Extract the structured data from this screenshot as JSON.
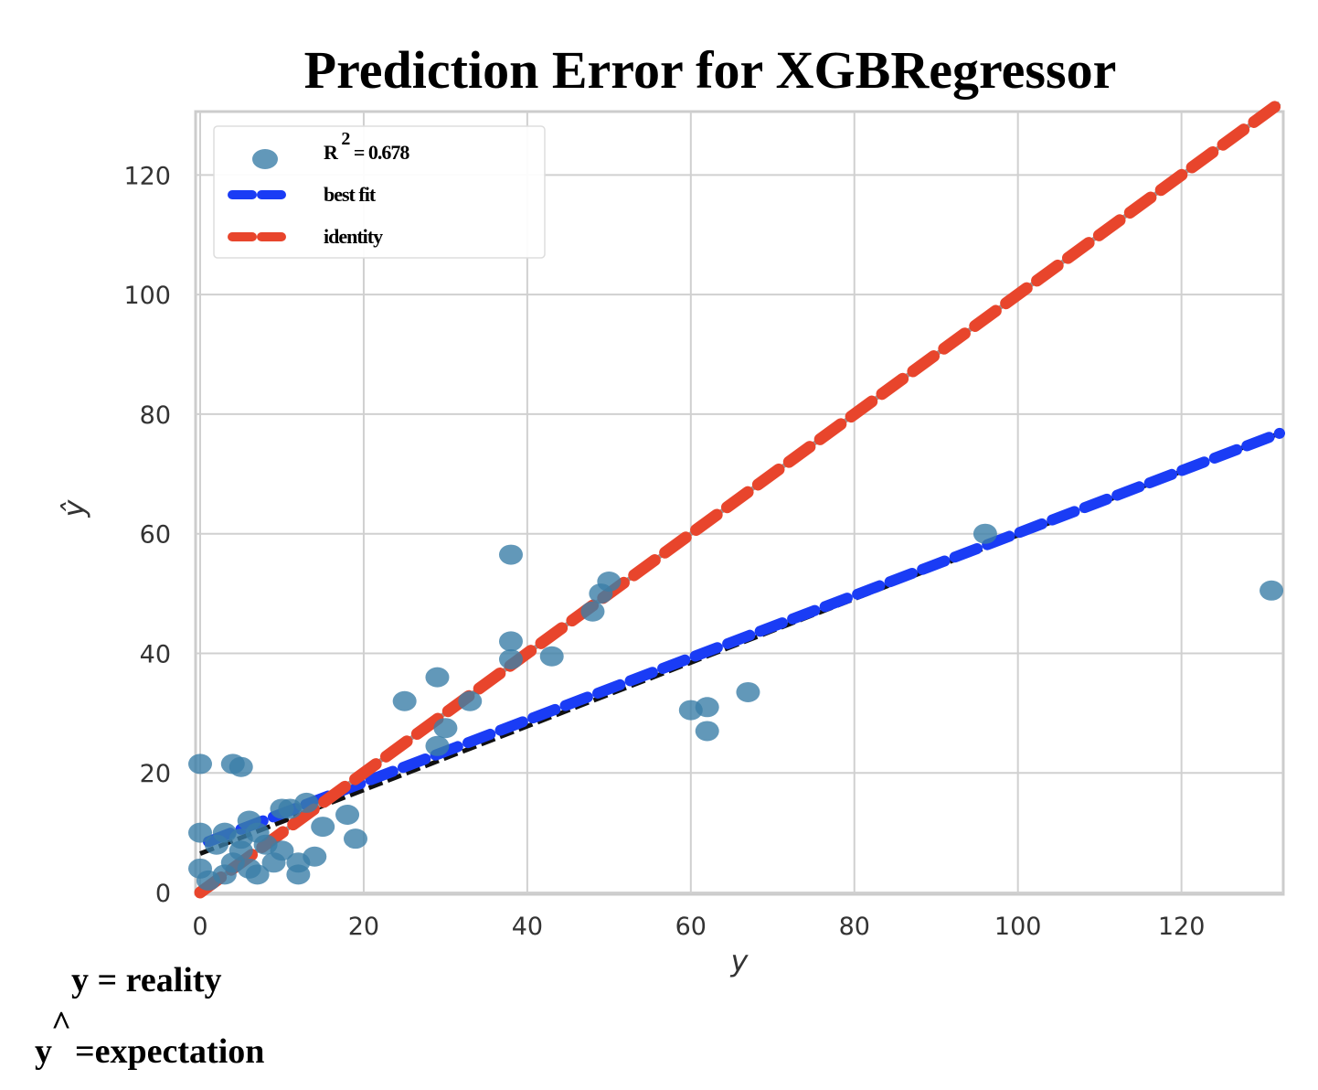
{
  "chart_data": {
    "type": "scatter",
    "title": "Prediction Error for XGBRegressor",
    "xlabel": "y",
    "ylabel": "ŷ",
    "xlim": [
      0,
      132
    ],
    "ylim": [
      0,
      130
    ],
    "xticks": [
      0,
      20,
      40,
      60,
      80,
      100,
      120
    ],
    "yticks": [
      0,
      20,
      40,
      60,
      80,
      100,
      120
    ],
    "grid": true,
    "legend_position": "top-left",
    "legend": {
      "r2_label": "R",
      "r2_sup": "2",
      "r2_value": " = 0.678",
      "best_fit": "best fit",
      "identity": "identity"
    },
    "colors": {
      "points": "#3b7ea8",
      "best_fit": "#1a3cf5",
      "identity": "#e8452c",
      "best_fit_underlay": "#111111",
      "identity_underlay": "#999999",
      "grid": "#d0d0d0"
    },
    "series": [
      {
        "kind": "points",
        "x": [
          0,
          0,
          0,
          1,
          2,
          3,
          3,
          4,
          4,
          5,
          5,
          5,
          6,
          6,
          7,
          7,
          8,
          9,
          10,
          10,
          11,
          12,
          12,
          13,
          14,
          15,
          18,
          19,
          25,
          29,
          29,
          30,
          33,
          38,
          38,
          38,
          43,
          48,
          49,
          50,
          60,
          62,
          62,
          67,
          96,
          131
        ],
        "y": [
          10,
          4,
          21.5,
          2,
          8,
          10,
          3,
          5,
          21.5,
          21,
          7,
          9,
          12,
          4,
          3,
          10,
          8,
          5,
          14,
          7,
          14,
          5,
          3,
          15,
          6,
          11,
          13,
          9,
          32,
          36,
          24.5,
          27.5,
          32,
          56.5,
          42,
          39,
          39.5,
          47,
          50,
          52,
          30.5,
          31,
          27,
          33.5,
          60,
          50.5
        ]
      },
      {
        "kind": "best_fit_line",
        "x": [
          0,
          132
        ],
        "y": [
          6.5,
          76.8
        ]
      },
      {
        "kind": "identity_line",
        "x": [
          0,
          132
        ],
        "y": [
          0,
          132
        ]
      }
    ]
  },
  "notes": {
    "line1": "y = reality",
    "line2_hat": "^",
    "line2_y": "y",
    "line2_rest": "=expectation"
  }
}
